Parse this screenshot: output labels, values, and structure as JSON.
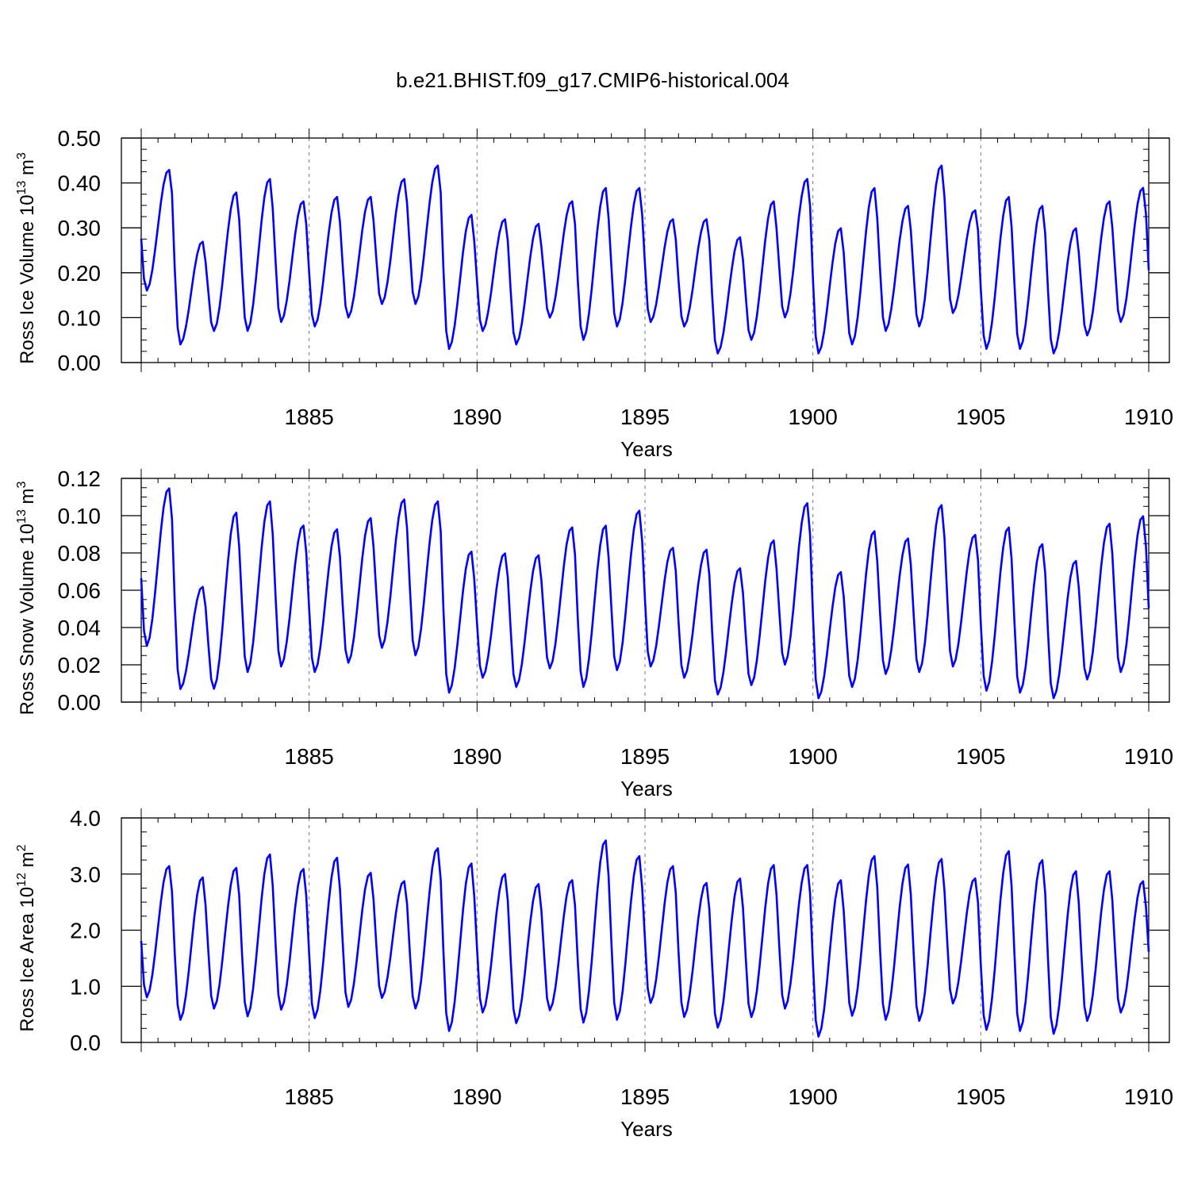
{
  "title": "b.e21.BHIST.f09_g17.CMIP6-historical.004",
  "chart_data": [
    {
      "type": "line",
      "id": "ice-volume",
      "ylabel": "Ross Ice Volume 10",
      "ylabel_exp": "13",
      "ylabel_unit": " m",
      "ylabel_unit_exp": "3",
      "xlabel": "Years",
      "xlim": [
        1880,
        1910
      ],
      "ylim": [
        0,
        0.5
      ],
      "yticks": [
        "0.00",
        "0.10",
        "0.20",
        "0.30",
        "0.40",
        "0.50"
      ],
      "xticks": [
        "1885",
        "1890",
        "1895",
        "1900",
        "1905",
        "1910"
      ],
      "color": "#0000ff",
      "max": [
        0.43,
        0.27,
        0.38,
        0.41,
        0.36,
        0.37,
        0.37,
        0.41,
        0.44,
        0.33,
        0.32,
        0.31,
        0.36,
        0.39,
        0.39,
        0.32,
        0.32,
        0.28,
        0.36,
        0.41,
        0.3,
        0.39,
        0.35,
        0.44,
        0.34,
        0.37,
        0.35,
        0.3,
        0.36,
        0.39
      ],
      "min": [
        0.16,
        0.04,
        0.07,
        0.07,
        0.09,
        0.08,
        0.1,
        0.13,
        0.13,
        0.03,
        0.07,
        0.04,
        0.1,
        0.05,
        0.08,
        0.09,
        0.08,
        0.02,
        0.05,
        0.1,
        0.02,
        0.04,
        0.07,
        0.08,
        0.11,
        0.03,
        0.03,
        0.02,
        0.06,
        0.09
      ]
    },
    {
      "type": "line",
      "id": "snow-volume",
      "ylabel": "Ross Snow Volume 10",
      "ylabel_exp": "13",
      "ylabel_unit": " m",
      "ylabel_unit_exp": "3",
      "xlabel": "Years",
      "xlim": [
        1880,
        1910
      ],
      "ylim": [
        0,
        0.12
      ],
      "yticks": [
        "0.00",
        "0.02",
        "0.04",
        "0.06",
        "0.08",
        "0.10",
        "0.12"
      ],
      "xticks": [
        "1885",
        "1890",
        "1895",
        "1900",
        "1905",
        "1910"
      ],
      "color": "#0000ff",
      "max": [
        0.115,
        0.062,
        0.102,
        0.108,
        0.095,
        0.093,
        0.099,
        0.109,
        0.108,
        0.081,
        0.08,
        0.079,
        0.094,
        0.095,
        0.103,
        0.083,
        0.082,
        0.072,
        0.087,
        0.107,
        0.07,
        0.092,
        0.088,
        0.106,
        0.09,
        0.094,
        0.085,
        0.076,
        0.096,
        0.1
      ],
      "min": [
        0.03,
        0.007,
        0.007,
        0.016,
        0.019,
        0.016,
        0.021,
        0.029,
        0.025,
        0.005,
        0.013,
        0.008,
        0.018,
        0.008,
        0.017,
        0.019,
        0.013,
        0.004,
        0.009,
        0.02,
        0.002,
        0.008,
        0.015,
        0.016,
        0.019,
        0.006,
        0.005,
        0.002,
        0.012,
        0.016
      ]
    },
    {
      "type": "line",
      "id": "ice-area",
      "ylabel": "Ross Ice Area 10",
      "ylabel_exp": "12",
      "ylabel_unit": " m",
      "ylabel_unit_exp": "2",
      "xlabel": "Years",
      "xlim": [
        1880,
        1910
      ],
      "ylim": [
        0,
        4.0
      ],
      "yticks": [
        "0.0",
        "1.0",
        "2.0",
        "3.0",
        "4.0"
      ],
      "xticks": [
        "1885",
        "1890",
        "1895",
        "1900",
        "1905",
        "1910"
      ],
      "color": "#0000ff",
      "max": [
        3.15,
        2.95,
        3.12,
        3.36,
        3.1,
        3.3,
        3.03,
        2.88,
        3.47,
        3.2,
        3.01,
        2.83,
        2.9,
        3.61,
        3.33,
        3.15,
        2.85,
        2.93,
        3.17,
        3.17,
        2.9,
        3.33,
        3.18,
        3.28,
        2.93,
        3.42,
        3.26,
        3.06,
        3.06,
        2.88
      ],
      "min": [
        0.8,
        0.4,
        0.6,
        0.46,
        0.58,
        0.43,
        0.63,
        0.79,
        0.6,
        0.2,
        0.53,
        0.34,
        0.57,
        0.35,
        0.4,
        0.7,
        0.45,
        0.26,
        0.45,
        0.6,
        0.1,
        0.47,
        0.4,
        0.38,
        0.69,
        0.22,
        0.2,
        0.15,
        0.38,
        0.53
      ]
    }
  ]
}
